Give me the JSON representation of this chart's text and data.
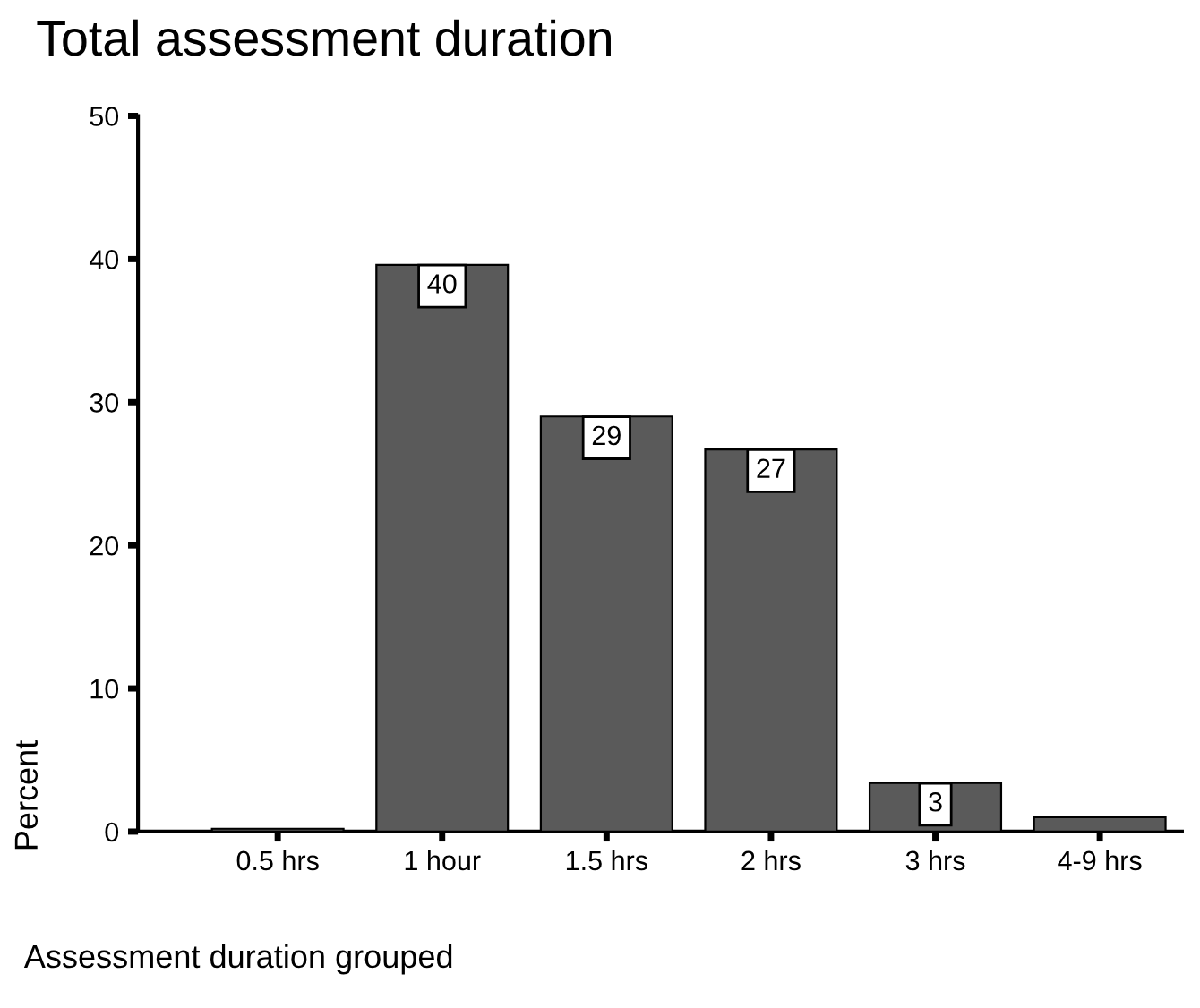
{
  "chart_data": {
    "type": "bar",
    "title": "Total assessment duration",
    "xlabel": "Assessment duration grouped",
    "ylabel": "Percent",
    "categories": [
      "0.5 hrs",
      "1 hour",
      "1.5 hrs",
      "2 hrs",
      "3 hrs",
      "4-9 hrs"
    ],
    "values": [
      0.2,
      39.6,
      29.0,
      26.7,
      3.4,
      1.0
    ],
    "value_labels": [
      null,
      "40",
      "29",
      "27",
      "3",
      null
    ],
    "color": "#5a5a5a",
    "ylim": [
      0,
      50
    ],
    "yticks": [
      0,
      10,
      20,
      30,
      40,
      50
    ],
    "grid": false,
    "legend": false
  }
}
